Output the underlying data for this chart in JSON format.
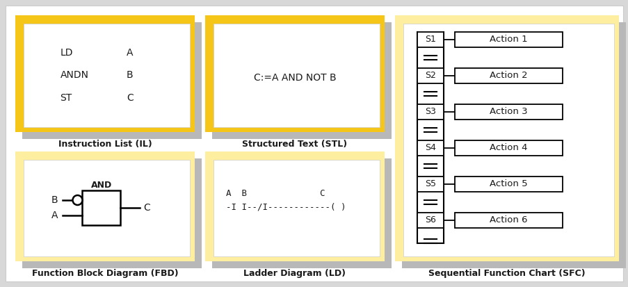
{
  "bg_color": "#d8d8d8",
  "panel_bg": "#ffffff",
  "yellow": "#F5C518",
  "gray_shadow": "#b8b8b8",
  "light_yellow": "#FDEEA0",
  "text_color": "#1a1a1a",
  "il_cmds": [
    "LD",
    "ANDN",
    "ST"
  ],
  "il_args": [
    "A",
    "B",
    "C"
  ],
  "stl_text": "C:=A AND NOT B",
  "ladder_line1": "A  B              C",
  "ladder_line2": "-I I--/I------------( )",
  "sfc_states": [
    "S1",
    "S2",
    "S3",
    "S4",
    "S5",
    "S6"
  ],
  "sfc_actions": [
    "Action 1",
    "Action 2",
    "Action 3",
    "Action 4",
    "Action 5",
    "Action 6"
  ],
  "label_il": "Instruction List (IL)",
  "label_stl": "Structured Text (STL)",
  "label_fbd": "Function Block Diagram (FBD)",
  "label_ld": "Ladder Diagram (LD)",
  "label_sfc": "Sequential Function Chart (SFC)"
}
